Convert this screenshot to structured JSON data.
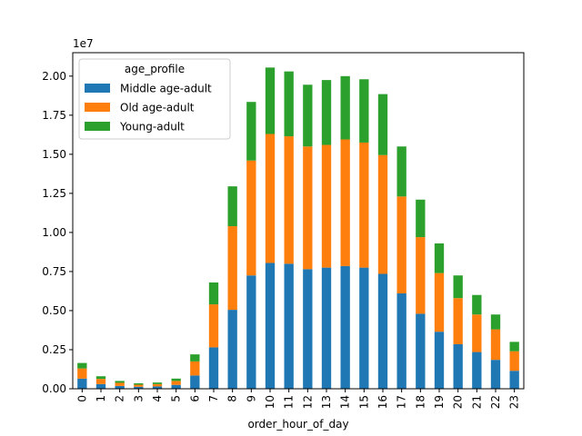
{
  "chart_data": {
    "type": "bar",
    "stacked": true,
    "title": "",
    "xlabel": "order_hour_of_day",
    "ylabel": "",
    "y_offset_label": "1e7",
    "y_scale": 10000000,
    "ylim": [
      0,
      2.15
    ],
    "yticks": [
      "0.00",
      "0.25",
      "0.50",
      "0.75",
      "1.00",
      "1.25",
      "1.50",
      "1.75",
      "2.00"
    ],
    "categories": [
      "0",
      "1",
      "2",
      "3",
      "4",
      "5",
      "6",
      "7",
      "8",
      "9",
      "10",
      "11",
      "12",
      "13",
      "14",
      "15",
      "16",
      "17",
      "18",
      "19",
      "20",
      "21",
      "22",
      "23"
    ],
    "legend_title": "age_profile",
    "legend_position": "upper-left",
    "series": [
      {
        "name": "Middle age-adult",
        "color": "#1f77b4",
        "values": [
          0.065,
          0.03,
          0.018,
          0.013,
          0.015,
          0.025,
          0.085,
          0.265,
          0.505,
          0.725,
          0.805,
          0.8,
          0.765,
          0.775,
          0.785,
          0.775,
          0.735,
          0.61,
          0.48,
          0.365,
          0.285,
          0.235,
          0.185,
          0.115
        ]
      },
      {
        "name": "Old age-adult",
        "color": "#ff7f0e",
        "values": [
          0.065,
          0.033,
          0.02,
          0.013,
          0.015,
          0.025,
          0.09,
          0.275,
          0.535,
          0.735,
          0.825,
          0.815,
          0.785,
          0.785,
          0.81,
          0.8,
          0.76,
          0.62,
          0.49,
          0.375,
          0.295,
          0.24,
          0.195,
          0.125
        ]
      },
      {
        "name": "Young-adult",
        "color": "#2ca02c",
        "values": [
          0.035,
          0.017,
          0.012,
          0.009,
          0.01,
          0.015,
          0.045,
          0.14,
          0.255,
          0.375,
          0.425,
          0.415,
          0.395,
          0.415,
          0.405,
          0.405,
          0.39,
          0.32,
          0.24,
          0.19,
          0.145,
          0.125,
          0.095,
          0.06
        ]
      }
    ]
  }
}
